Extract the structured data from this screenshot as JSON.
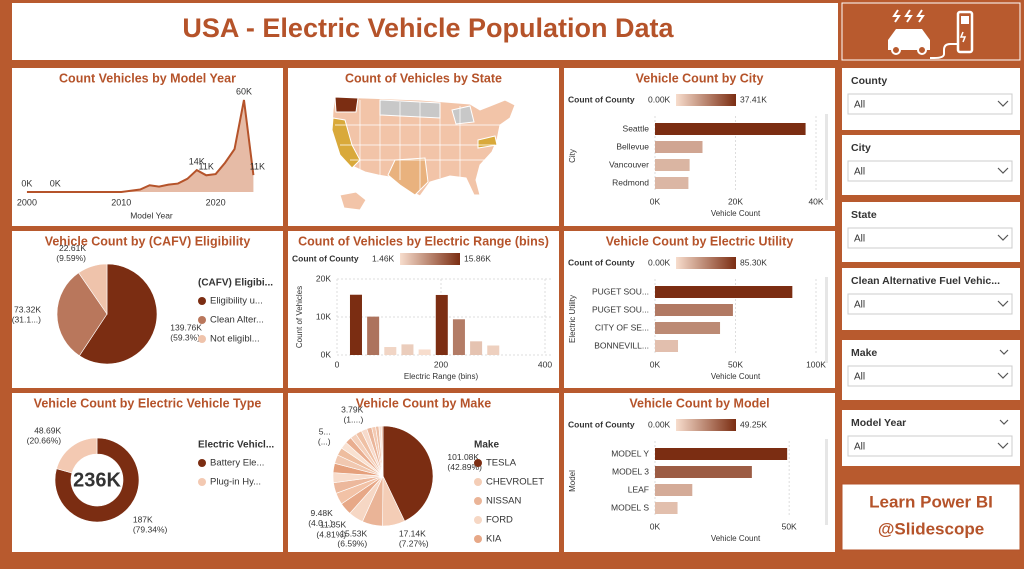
{
  "header": {
    "title": "USA - Electric Vehicle Population Data"
  },
  "chart_data": [
    {
      "type": "area",
      "title": "Count Vehicles by Model Year",
      "x_label": "Model Year",
      "x": [
        2000,
        2003,
        2008,
        2010,
        2011,
        2012,
        2013,
        2014,
        2015,
        2016,
        2017,
        2018,
        2019,
        2020,
        2021,
        2022,
        2023,
        2024
      ],
      "values": [
        0.01,
        0.01,
        0.02,
        0.02,
        0.8,
        1.6,
        4.4,
        3.5,
        4.8,
        5.5,
        8.6,
        14.3,
        10.9,
        11.7,
        19.1,
        28.0,
        60.0,
        11.0
      ],
      "value_labels": [
        "0K",
        "0K",
        null,
        null,
        null,
        null,
        null,
        null,
        null,
        null,
        null,
        "14K",
        "11K",
        null,
        null,
        null,
        "60K",
        "11K"
      ],
      "xlim": [
        1999.9,
        2026.5
      ],
      "xticks": [
        2000,
        2010,
        2020
      ],
      "color": "#b5532a",
      "fill": "#e6bba6"
    },
    {
      "type": "map",
      "title": "Count of Vehicles by State"
    },
    {
      "type": "hbar",
      "title": "Vehicle Count by City",
      "color_scale": {
        "title": "Count of County",
        "min": {
          "value": 0,
          "label": "0.00K"
        },
        "max": {
          "value": 37.41,
          "label": "37.41K"
        },
        "colors": [
          "#f7ddcd",
          "#7b2d12"
        ]
      },
      "categories": [
        "Seattle",
        "Bellevue",
        "Vancouver",
        "Redmond"
      ],
      "values": [
        37.41,
        11.8,
        8.6,
        8.3
      ],
      "xlim": [
        0,
        40
      ],
      "xticks": [
        {
          "value": 0,
          "label": "0K"
        },
        {
          "value": 20,
          "label": "20K"
        },
        {
          "value": 40,
          "label": "40K"
        }
      ],
      "x_label": "Vehicle Count",
      "y_label": "City"
    },
    {
      "type": "pie",
      "title": "Vehicle Count by (CAFV) Eligibility",
      "legend_title": "(CAFV) Eligibi...",
      "categories": [
        "Eligibility u...",
        "Clean Alter...",
        "Not eligibl..."
      ],
      "values": [
        139.76,
        73.32,
        22.61
      ],
      "value_labels": [
        "139.76K (59.3%)",
        "73.32K (31.1...)",
        "22.61K (9.59%)"
      ],
      "colors": [
        "#7b2d12",
        "#b9775c",
        "#efc3ab"
      ]
    },
    {
      "type": "histogram",
      "title": "Count of Vehicles by Electric Range (bins)",
      "color_scale": {
        "title": "Count of County",
        "min": {
          "value": 1.46,
          "label": "1.46K"
        },
        "max": {
          "value": 15.86,
          "label": "15.86K"
        },
        "colors": [
          "#f7ddcd",
          "#7b2d12"
        ]
      },
      "bins": [
        20,
        53,
        86,
        119,
        152,
        185,
        218,
        251,
        284,
        317
      ],
      "values": [
        15.86,
        10.1,
        2.1,
        2.8,
        1.46,
        15.8,
        9.4,
        3.6,
        2.5
      ],
      "xlim": [
        0,
        400
      ],
      "xticks": [
        0,
        200,
        400
      ],
      "ylim": [
        0,
        20
      ],
      "yticks": [
        {
          "value": 0,
          "label": "0K"
        },
        {
          "value": 10,
          "label": "10K"
        },
        {
          "value": 20,
          "label": "20K"
        }
      ],
      "x_label": "Electric Range (bins)",
      "y_label": "Count of Vehicles"
    },
    {
      "type": "hbar",
      "title": "Vehicle Count by Electric Utility",
      "color_scale": {
        "title": "Count of County",
        "min": {
          "value": 0,
          "label": "0.00K"
        },
        "max": {
          "value": 85.3,
          "label": "85.30K"
        },
        "colors": [
          "#f7ddcd",
          "#7b2d12"
        ]
      },
      "categories": [
        "PUGET SOU...",
        "PUGET SOU...",
        "CITY OF SE...",
        "BONNEVILL..."
      ],
      "values": [
        85.3,
        48.4,
        40.4,
        14.3
      ],
      "xlim": [
        0,
        100
      ],
      "xticks": [
        {
          "value": 0,
          "label": "0K"
        },
        {
          "value": 50,
          "label": "50K"
        },
        {
          "value": 100,
          "label": "100K"
        }
      ],
      "x_label": "Vehicle Count",
      "y_label": "Electric Utility"
    },
    {
      "type": "donut",
      "title": "Vehicle Count by Electric Vehicle Type",
      "center_label": "236K",
      "legend_title": "Electric Vehicl...",
      "categories": [
        "Battery Ele...",
        "Plug-in Hy..."
      ],
      "values": [
        187,
        48.69
      ],
      "value_labels": [
        "187K (79.34%)",
        "48.69K (20.66%)"
      ],
      "colors": [
        "#7b2d12",
        "#f3c9b2"
      ]
    },
    {
      "type": "pie",
      "title": "Vehicle Count by Make",
      "legend_title": "Make",
      "categories": [
        "TESLA",
        "CHEVROLET",
        "NISSAN",
        "FORD",
        "KIA",
        null,
        null,
        null,
        null,
        null,
        null,
        null,
        null,
        null,
        null,
        null,
        null,
        null,
        null,
        null,
        null
      ],
      "values": [
        101.08,
        17.14,
        15.53,
        11.35,
        9.48,
        8.9,
        8.2,
        7.6,
        7.1,
        6.6,
        6.0,
        5.4,
        5.0,
        4.8,
        4.7,
        4.4,
        3.79,
        3.0,
        2.5,
        1.9,
        1.2
      ],
      "value_labels": [
        "101.08K (42.89%)",
        "17.14K (7.27%)",
        "15.53K (6.59%)",
        "11.35K (4.81%)",
        "9.48K (4.0...)",
        null,
        null,
        null,
        null,
        null,
        null,
        "5... (...)",
        null,
        null,
        null,
        null,
        "3.79K (1....)",
        null,
        null,
        null,
        null
      ],
      "colors": [
        "#7b2d12",
        "#f4cdb6",
        "#eab497",
        "#f6d7c4",
        "#e7a887",
        "#f2c2a6",
        "#ecb89c",
        "#f8dccb",
        "#e5a07c",
        "#f1c8b0",
        "#eebd9f",
        "#f9e1d1",
        "#e9ae90",
        "#f4d0bb",
        "#efc0a4",
        "#f7dacb",
        "#eab59a",
        "#f3c9b2",
        "#edbfa5",
        "#f8e0d2",
        "#e8b195"
      ]
    },
    {
      "type": "hbar",
      "title": "Vehicle Count by Model",
      "color_scale": {
        "title": "Count of County",
        "min": {
          "value": 0,
          "label": "0.00K"
        },
        "max": {
          "value": 49.25,
          "label": "49.25K"
        },
        "colors": [
          "#f7ddcd",
          "#7b2d12"
        ]
      },
      "categories": [
        "MODEL Y",
        "MODEL 3",
        "LEAF",
        "MODEL S"
      ],
      "values": [
        49.25,
        36.1,
        13.9,
        8.4
      ],
      "xlim": [
        0,
        60
      ],
      "xticks": [
        {
          "value": 0,
          "label": "0K"
        },
        {
          "value": 50,
          "label": "50K"
        }
      ],
      "x_label": "Vehicle Count",
      "y_label": "Model"
    }
  ],
  "slicers": [
    {
      "title": "County",
      "value": "All"
    },
    {
      "title": "City",
      "value": "All"
    },
    {
      "title": "State",
      "value": "All"
    },
    {
      "title": "Clean Alternative Fuel Vehic...",
      "value": "All"
    },
    {
      "title": "Make",
      "value": "All"
    },
    {
      "title": "Model Year",
      "value": "All"
    }
  ],
  "branding": {
    "line1": "Learn Power BI",
    "line2": "@Slidescope"
  }
}
